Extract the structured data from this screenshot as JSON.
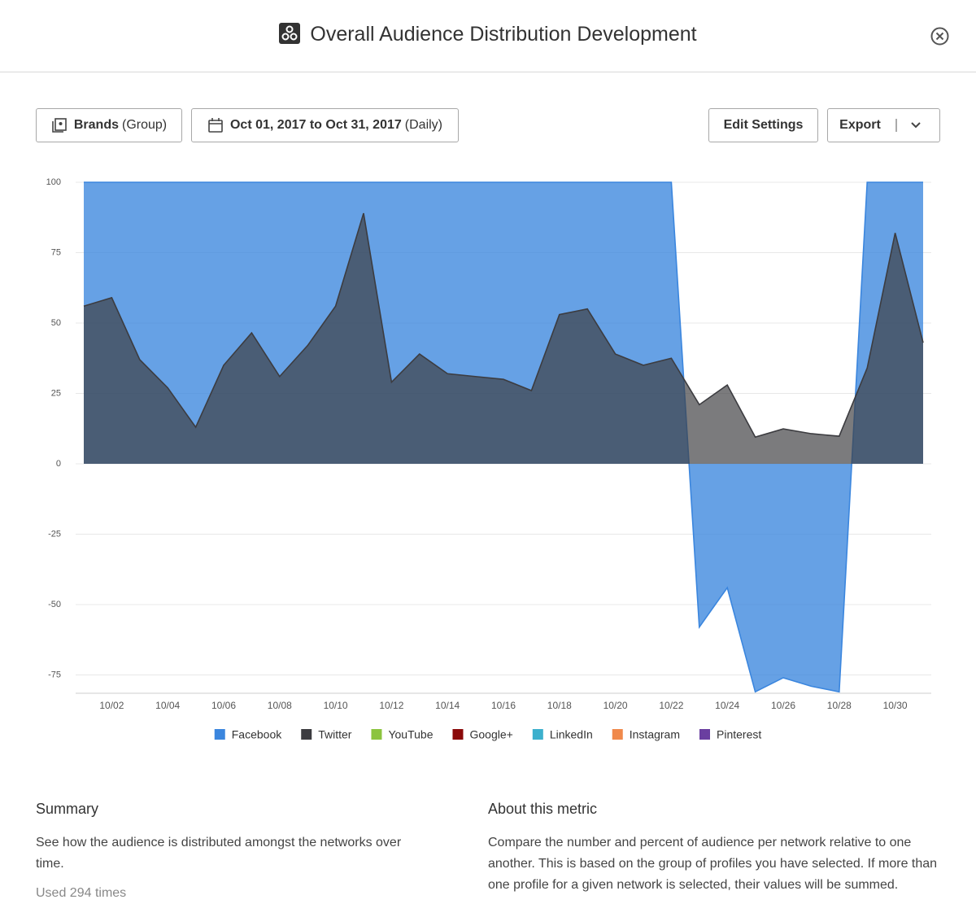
{
  "header": {
    "title": "Overall Audience Distribution Development"
  },
  "controls": {
    "group_name": "Brands",
    "group_kind": "(Group)",
    "date_range": "Oct 01, 2017 to Oct 31, 2017",
    "date_step": "(Daily)",
    "edit_settings": "Edit Settings",
    "export": "Export"
  },
  "chart_data": {
    "type": "area",
    "categories": [
      null,
      "10/02",
      null,
      "10/04",
      null,
      "10/06",
      null,
      "10/08",
      null,
      "10/10",
      null,
      "10/12",
      null,
      "10/14",
      null,
      "10/16",
      null,
      "10/18",
      null,
      "10/20",
      null,
      "10/22",
      null,
      "10/24",
      null,
      "10/26",
      null,
      "10/28",
      null,
      "10/30",
      null
    ],
    "series": [
      {
        "name": "Facebook",
        "color": "#3b86de",
        "values": [
          100,
          100,
          100,
          100,
          100,
          100,
          100,
          100,
          100,
          100,
          100,
          100,
          100,
          100,
          100,
          100,
          100,
          100,
          100,
          100,
          100,
          100,
          -58,
          -44,
          -81,
          -76,
          -79,
          -81,
          100,
          100,
          100
        ]
      },
      {
        "name": "Twitter",
        "color": "#3c3c40",
        "values": [
          56,
          59,
          37,
          27,
          13,
          35,
          46.5,
          31,
          42,
          56,
          89,
          29,
          39,
          32,
          31,
          30,
          26,
          53,
          55,
          39,
          35,
          37.5,
          21,
          28,
          9.5,
          12.4,
          10.7,
          9.8,
          34,
          82,
          43
        ]
      },
      {
        "name": "YouTube",
        "color": "#8cc43f"
      },
      {
        "name": "Google+",
        "color": "#8b0a0a"
      },
      {
        "name": "LinkedIn",
        "color": "#3cb0cd"
      },
      {
        "name": "Instagram",
        "color": "#f0894b"
      },
      {
        "name": "Pinterest",
        "color": "#6a3fa0"
      }
    ],
    "ylim": [
      -81.5,
      100
    ],
    "yticks": [
      100,
      75,
      50,
      25,
      0,
      -25,
      -50,
      -75
    ],
    "grid": true
  },
  "summary": {
    "heading": "Summary",
    "text": "See how the audience is distributed amongst the networks over time.",
    "usage": "Used 294 times"
  },
  "about": {
    "heading": "About this metric",
    "text": "Compare the number and percent of audience per network relative to one another. This is based on the group of profiles you have selected. If more than one profile for a given network is selected, their values will be summed."
  }
}
